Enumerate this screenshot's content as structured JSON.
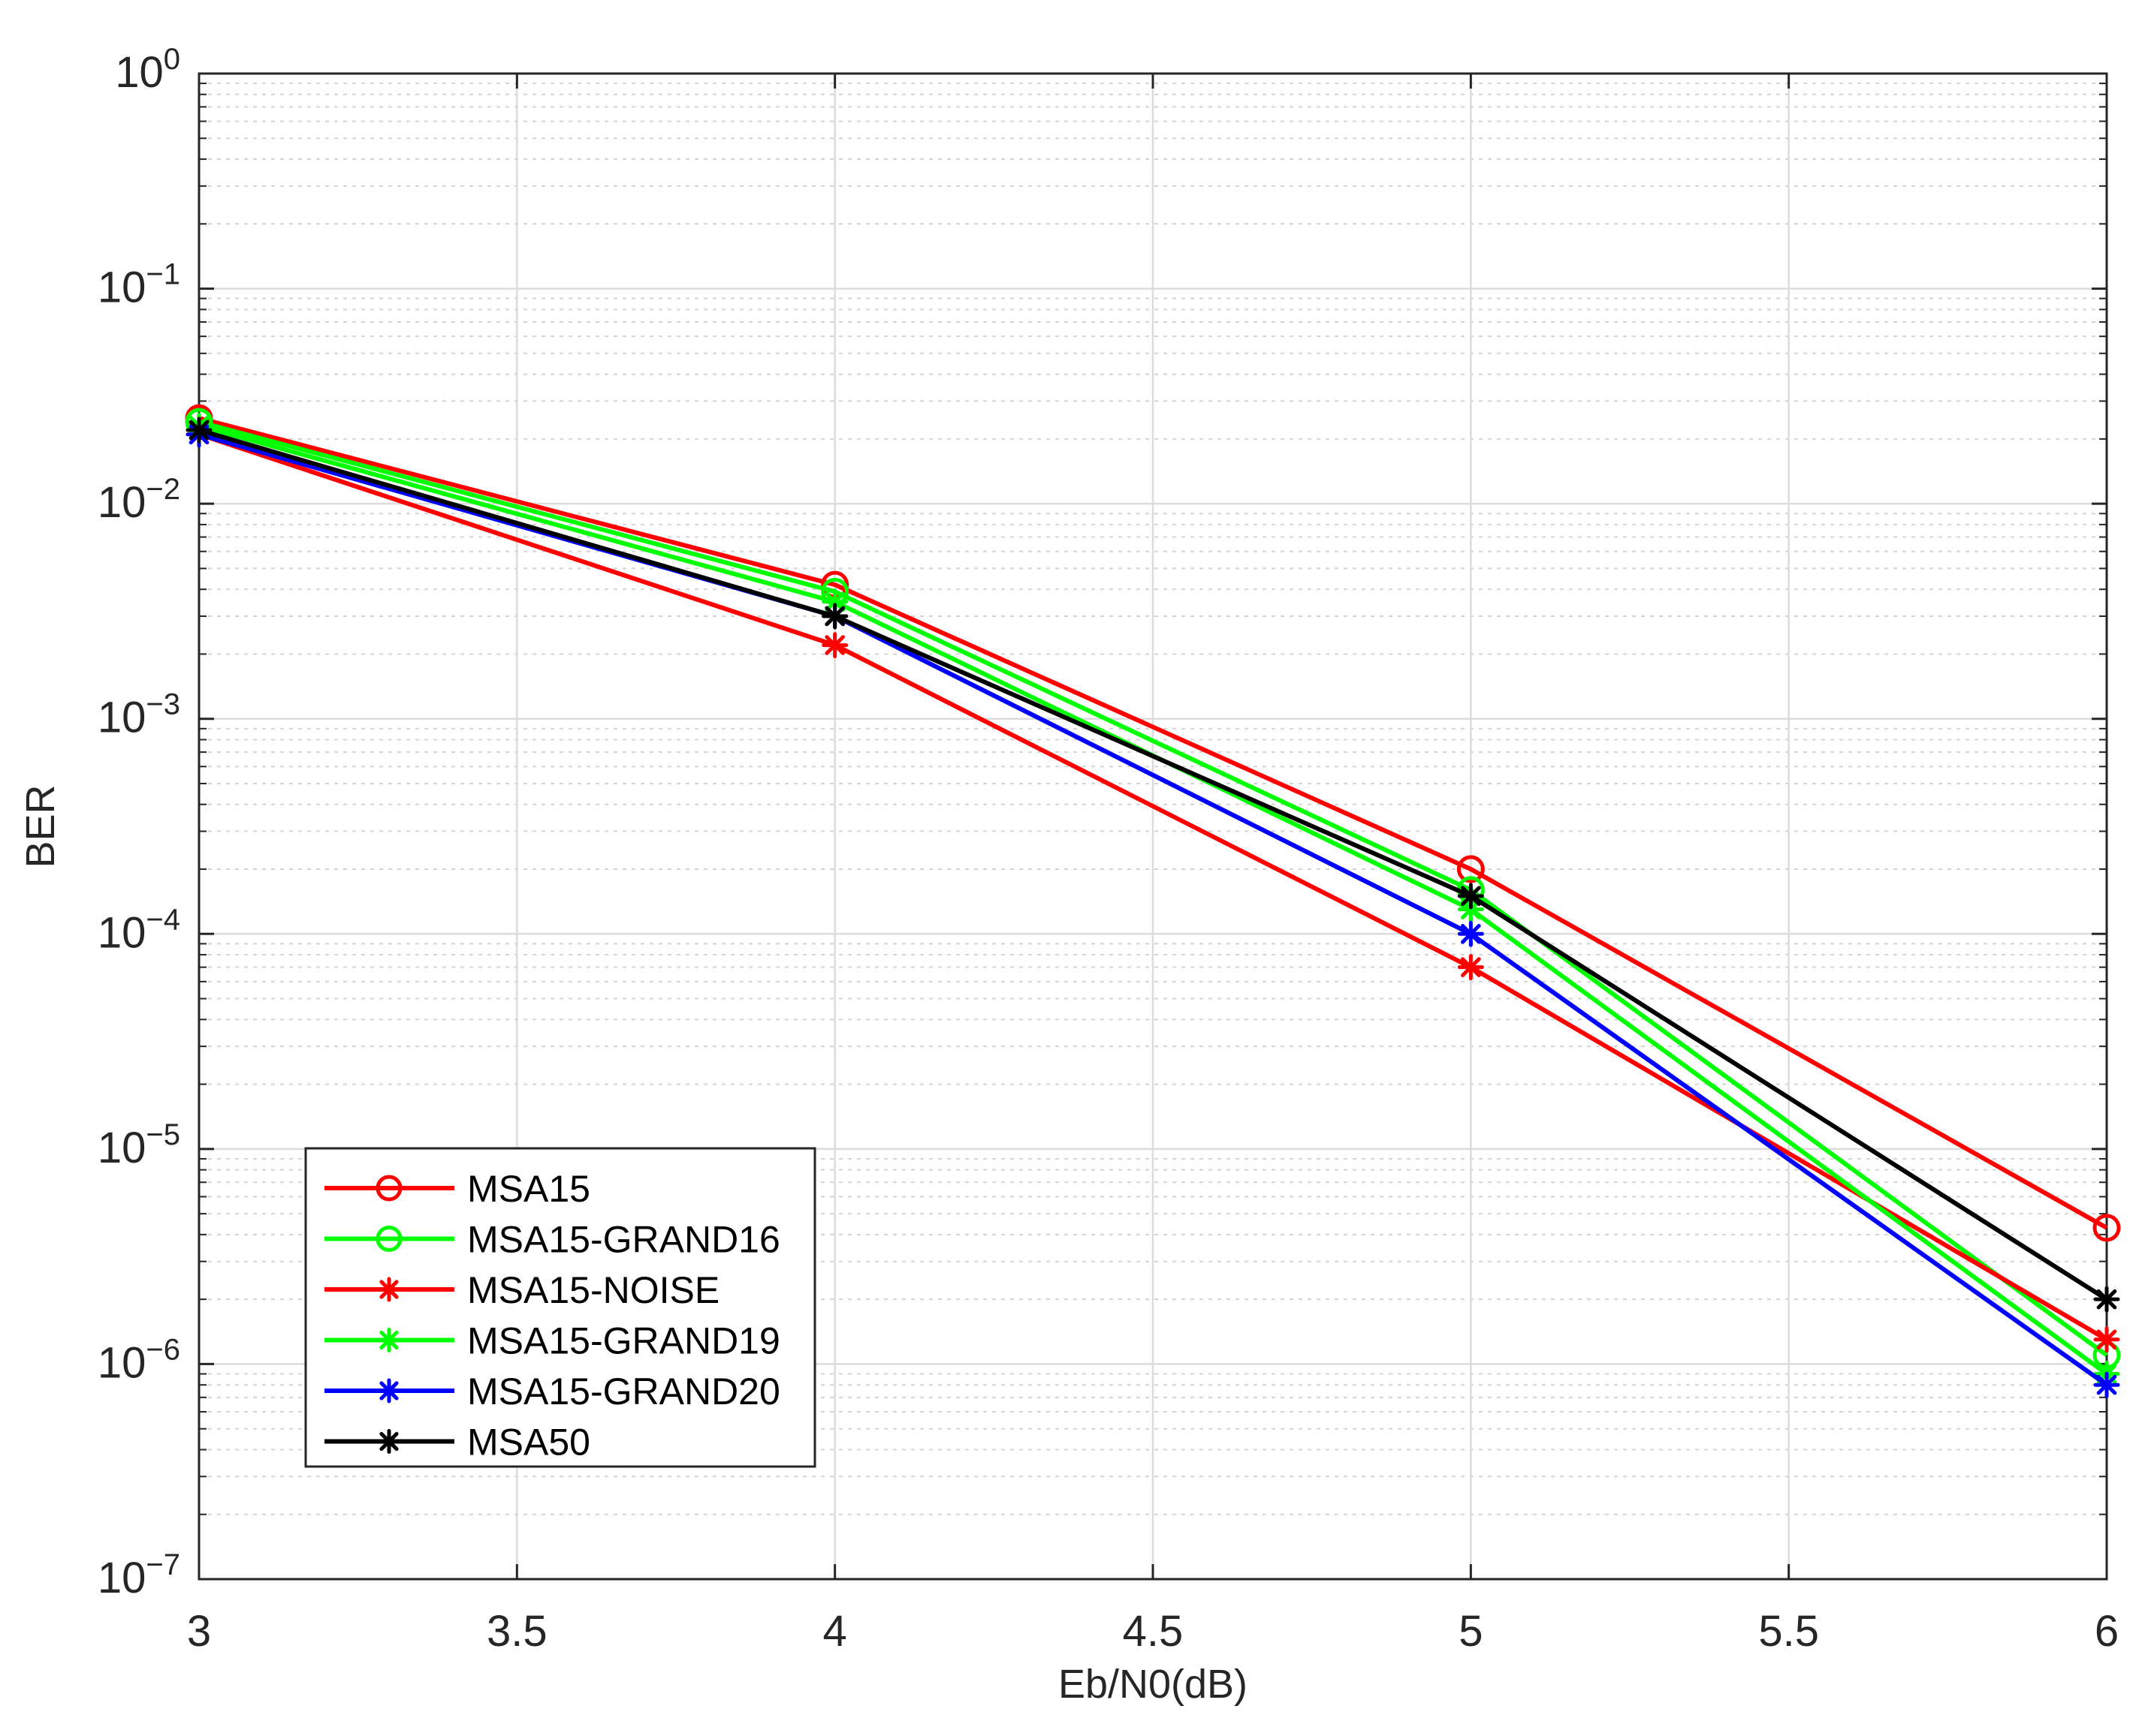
{
  "chart_data": {
    "type": "line",
    "title": "",
    "xlabel": "Eb/N0(dB)",
    "ylabel": "BER",
    "yscale": "log",
    "xlim": [
      3,
      6
    ],
    "ylim": [
      1e-07,
      1
    ],
    "grid": true,
    "minor_grid": true,
    "legend_location": "bottom-left",
    "x": [
      3,
      4,
      5,
      6
    ],
    "x_ticks": [
      3,
      3.5,
      4,
      4.5,
      5,
      5.5,
      6
    ],
    "x_tick_labels": [
      "3",
      "3.5",
      "4",
      "4.5",
      "5",
      "5.5",
      "6"
    ],
    "y_ticks": [
      {
        "base": "10",
        "exp": "0",
        "value": 1
      },
      {
        "base": "10",
        "exp": "−1",
        "value": 0.1
      },
      {
        "base": "10",
        "exp": "−2",
        "value": 0.01
      },
      {
        "base": "10",
        "exp": "−3",
        "value": 0.001
      },
      {
        "base": "10",
        "exp": "−4",
        "value": 0.0001
      },
      {
        "base": "10",
        "exp": "−5",
        "value": 1e-05
      },
      {
        "base": "10",
        "exp": "−6",
        "value": 1e-06
      },
      {
        "base": "10",
        "exp": "−7",
        "value": 1e-07
      }
    ],
    "series": [
      {
        "name": "MSA15",
        "color": "#ff0000",
        "marker": "circle",
        "values": [
          0.025,
          0.0042,
          0.0002,
          4.3e-06
        ]
      },
      {
        "name": "MSA15-GRAND16",
        "color": "#00ff00",
        "marker": "circle",
        "values": [
          0.024,
          0.0039,
          0.00016,
          1.1e-06
        ]
      },
      {
        "name": "MSA15-NOISE",
        "color": "#ff0000",
        "marker": "asterisk",
        "values": [
          0.021,
          0.0022,
          7e-05,
          1.3e-06
        ]
      },
      {
        "name": "MSA15-GRAND19",
        "color": "#00ff00",
        "marker": "asterisk",
        "values": [
          0.023,
          0.0035,
          0.00013,
          9e-07
        ]
      },
      {
        "name": "MSA15-GRAND20",
        "color": "#0000ff",
        "marker": "asterisk",
        "values": [
          0.021,
          0.003,
          0.0001,
          8e-07
        ]
      },
      {
        "name": "MSA50",
        "color": "#000000",
        "marker": "asterisk",
        "values": [
          0.022,
          0.003,
          0.00015,
          2e-06
        ]
      }
    ]
  }
}
